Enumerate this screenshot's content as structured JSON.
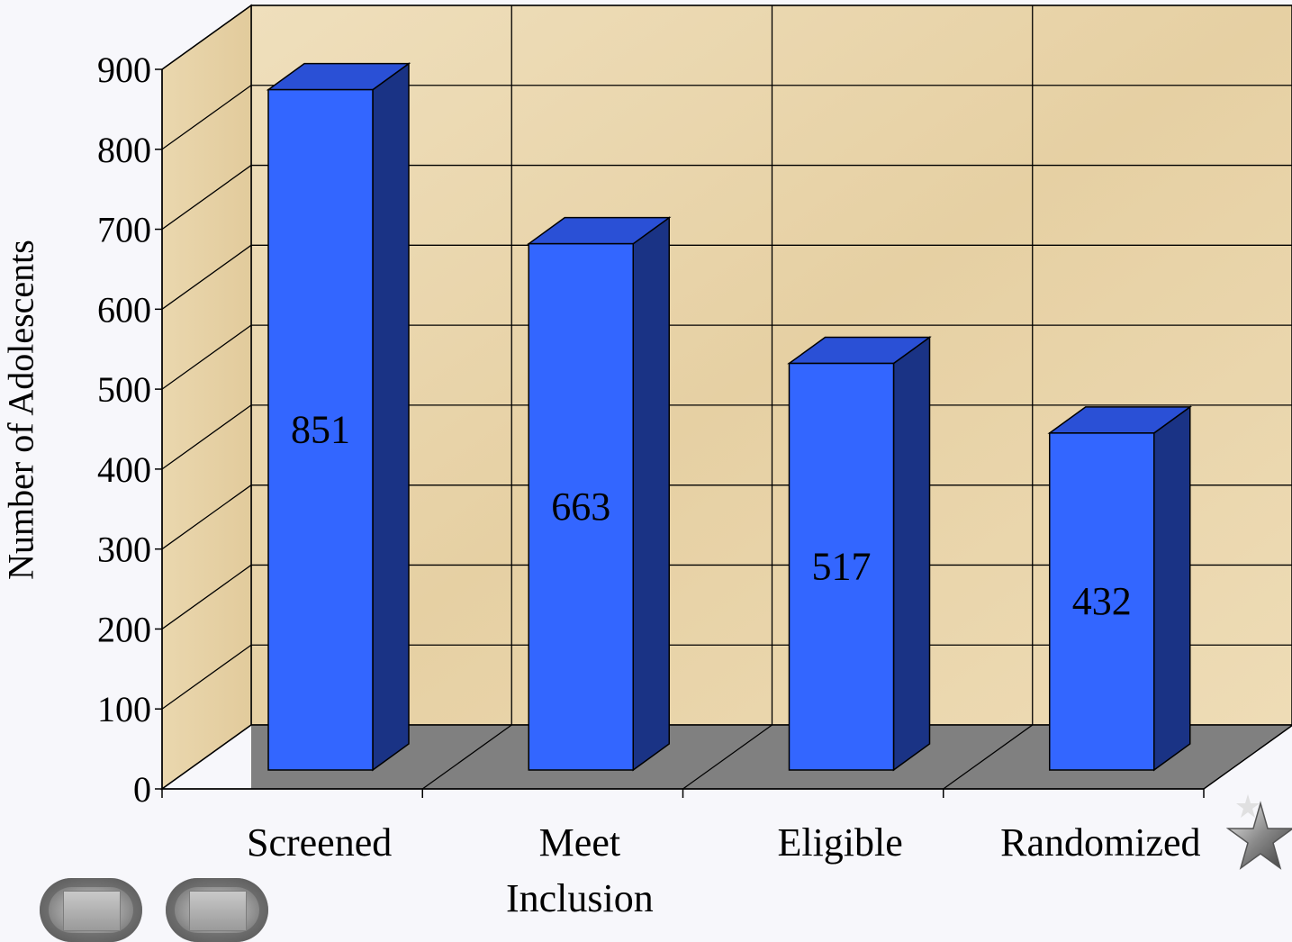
{
  "chart_data": {
    "type": "bar",
    "style": "3d",
    "categories": [
      "Screened",
      "Meet Inclusion",
      "Eligible",
      "Randomized"
    ],
    "category_lines": [
      [
        "Screened"
      ],
      [
        "Meet",
        "Inclusion"
      ],
      [
        "Eligible"
      ],
      [
        "Randomized"
      ]
    ],
    "values": [
      851,
      663,
      517,
      432
    ],
    "data_labels": [
      "851",
      "663",
      "517",
      "432"
    ],
    "ylabel": "Number of Adolescents",
    "ylim": [
      0,
      900
    ],
    "yticks": [
      "0",
      "100",
      "200",
      "300",
      "400",
      "500",
      "600",
      "700",
      "800",
      "900"
    ],
    "grid": true,
    "colors": {
      "bar_front": "#3366ff",
      "bar_side": "#1a3385",
      "bar_top": "#2a50d6",
      "floor": "#808080",
      "wall": "#e8d4a8"
    }
  },
  "nav": {
    "prev_icon": "rounded-prev-button",
    "next_icon": "rounded-next-button",
    "star_icon": "star-icon"
  }
}
